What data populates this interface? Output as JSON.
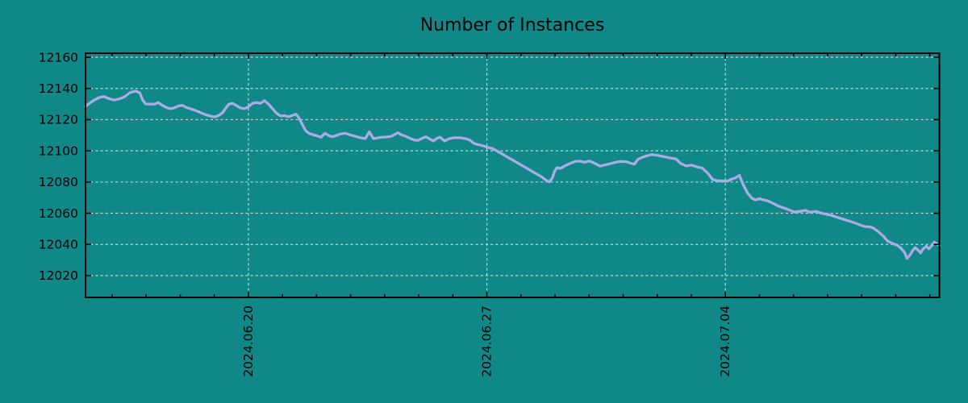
{
  "colors": {
    "background": "#118888",
    "line": "#ababe6",
    "grid": "#c9d3d3",
    "frame": "#000000",
    "text": "#000000"
  },
  "chart_data": {
    "type": "line",
    "title": "Number of Instances",
    "legend": false,
    "grid": true,
    "y_axis": {
      "range": [
        12006,
        12162.6
      ],
      "tick_values": [
        12020,
        12040,
        12060,
        12080,
        12100,
        12120,
        12140,
        12160
      ],
      "tick_labels": [
        "12020",
        "12040",
        "12060",
        "12080",
        "12100",
        "12120",
        "12140",
        "12160"
      ]
    },
    "x_axis": {
      "unit": "days from window start (window begins 2024-06-15 ~05:00)",
      "window_days": [
        0,
        25.06
      ],
      "minor_tick_days": [
        0.78,
        1.78,
        2.78,
        3.78,
        4.78,
        5.78,
        6.78,
        7.78,
        8.78,
        9.78,
        10.78,
        11.78,
        12.78,
        13.78,
        14.78,
        15.78,
        16.78,
        17.78,
        18.78,
        19.78,
        20.78,
        21.78,
        22.78,
        23.78,
        24.78
      ],
      "major_ticks": [
        {
          "d": 4.78,
          "label": "2024.06.20"
        },
        {
          "d": 11.78,
          "label": "2024.06.27"
        },
        {
          "d": 18.78,
          "label": "2024.07.04"
        }
      ]
    },
    "series": [
      {
        "name": "instances",
        "points": [
          [
            0.0,
            12128.5
          ],
          [
            0.12,
            12130.5
          ],
          [
            0.24,
            12132.3
          ],
          [
            0.4,
            12134.2
          ],
          [
            0.54,
            12134.8
          ],
          [
            0.69,
            12133.5
          ],
          [
            0.83,
            12132.5
          ],
          [
            0.99,
            12133.3
          ],
          [
            1.14,
            12134.6
          ],
          [
            1.3,
            12137.3
          ],
          [
            1.47,
            12138.3
          ],
          [
            1.59,
            12137.2
          ],
          [
            1.68,
            12132.5
          ],
          [
            1.77,
            12130.0
          ],
          [
            1.89,
            12130.0
          ],
          [
            2.01,
            12129.9
          ],
          [
            2.13,
            12131.0
          ],
          [
            2.25,
            12129.2
          ],
          [
            2.37,
            12127.8
          ],
          [
            2.48,
            12127.0
          ],
          [
            2.6,
            12127.5
          ],
          [
            2.72,
            12128.7
          ],
          [
            2.84,
            12129.2
          ],
          [
            2.96,
            12127.8
          ],
          [
            3.08,
            12127.0
          ],
          [
            3.19,
            12126.1
          ],
          [
            3.31,
            12125.2
          ],
          [
            3.43,
            12124.0
          ],
          [
            3.55,
            12123.0
          ],
          [
            3.67,
            12122.3
          ],
          [
            3.79,
            12121.7
          ],
          [
            3.9,
            12122.6
          ],
          [
            4.02,
            12124.3
          ],
          [
            4.14,
            12128.2
          ],
          [
            4.21,
            12129.9
          ],
          [
            4.31,
            12130.4
          ],
          [
            4.42,
            12129.2
          ],
          [
            4.54,
            12127.5
          ],
          [
            4.66,
            12127.0
          ],
          [
            4.78,
            12128.2
          ],
          [
            4.9,
            12130.4
          ],
          [
            5.02,
            12131.0
          ],
          [
            5.13,
            12130.4
          ],
          [
            5.25,
            12132.2
          ],
          [
            5.37,
            12130.0
          ],
          [
            5.49,
            12127.0
          ],
          [
            5.61,
            12124.0
          ],
          [
            5.73,
            12122.3
          ],
          [
            5.84,
            12122.6
          ],
          [
            5.96,
            12121.8
          ],
          [
            6.08,
            12122.8
          ],
          [
            6.18,
            12123.5
          ],
          [
            6.27,
            12121.0
          ],
          [
            6.37,
            12116.5
          ],
          [
            6.46,
            12113.0
          ],
          [
            6.55,
            12111.3
          ],
          [
            6.67,
            12110.4
          ],
          [
            6.79,
            12109.6
          ],
          [
            6.91,
            12108.7
          ],
          [
            7.03,
            12111.3
          ],
          [
            7.15,
            12109.6
          ],
          [
            7.26,
            12109.0
          ],
          [
            7.38,
            12110.0
          ],
          [
            7.5,
            12110.9
          ],
          [
            7.62,
            12111.3
          ],
          [
            7.74,
            12110.4
          ],
          [
            7.86,
            12109.6
          ],
          [
            7.97,
            12109.0
          ],
          [
            8.09,
            12108.3
          ],
          [
            8.21,
            12107.8
          ],
          [
            8.33,
            12112.2
          ],
          [
            8.45,
            12107.8
          ],
          [
            8.57,
            12108.3
          ],
          [
            8.68,
            12108.7
          ],
          [
            8.8,
            12108.8
          ],
          [
            8.98,
            12109.3
          ],
          [
            9.17,
            12111.6
          ],
          [
            9.28,
            12110.2
          ],
          [
            9.4,
            12109.3
          ],
          [
            9.52,
            12108.1
          ],
          [
            9.64,
            12107.0
          ],
          [
            9.76,
            12106.7
          ],
          [
            9.88,
            12108.1
          ],
          [
            9.99,
            12109.0
          ],
          [
            10.11,
            12107.5
          ],
          [
            10.21,
            12106.3
          ],
          [
            10.3,
            12107.8
          ],
          [
            10.4,
            12108.8
          ],
          [
            10.54,
            12106.3
          ],
          [
            10.68,
            12107.8
          ],
          [
            10.82,
            12108.4
          ],
          [
            10.99,
            12108.4
          ],
          [
            11.16,
            12107.8
          ],
          [
            11.27,
            12107.0
          ],
          [
            11.39,
            12104.9
          ],
          [
            11.51,
            12104.0
          ],
          [
            11.63,
            12103.5
          ],
          [
            11.77,
            12102.5
          ],
          [
            11.94,
            12101.5
          ],
          [
            12.19,
            12098.5
          ],
          [
            12.42,
            12095.5
          ],
          [
            12.66,
            12092.5
          ],
          [
            12.9,
            12089.5
          ],
          [
            13.13,
            12086.5
          ],
          [
            13.37,
            12083.5
          ],
          [
            13.51,
            12081.3
          ],
          [
            13.61,
            12080.0
          ],
          [
            13.7,
            12082.5
          ],
          [
            13.77,
            12087.0
          ],
          [
            13.84,
            12089.2
          ],
          [
            13.94,
            12088.7
          ],
          [
            14.08,
            12090.5
          ],
          [
            14.25,
            12092.2
          ],
          [
            14.39,
            12093.3
          ],
          [
            14.51,
            12093.4
          ],
          [
            14.65,
            12092.6
          ],
          [
            14.79,
            12093.5
          ],
          [
            14.95,
            12091.9
          ],
          [
            15.1,
            12090.2
          ],
          [
            15.26,
            12091.0
          ],
          [
            15.43,
            12091.9
          ],
          [
            15.59,
            12092.8
          ],
          [
            15.73,
            12093.2
          ],
          [
            15.9,
            12092.9
          ],
          [
            16.0,
            12092.0
          ],
          [
            16.11,
            12091.5
          ],
          [
            16.21,
            12094.5
          ],
          [
            16.33,
            12095.7
          ],
          [
            16.44,
            12096.6
          ],
          [
            16.61,
            12097.6
          ],
          [
            16.78,
            12097.1
          ],
          [
            16.97,
            12096.3
          ],
          [
            17.16,
            12095.4
          ],
          [
            17.32,
            12094.9
          ],
          [
            17.46,
            12092.0
          ],
          [
            17.63,
            12090.3
          ],
          [
            17.79,
            12090.8
          ],
          [
            17.94,
            12089.7
          ],
          [
            18.1,
            12089.0
          ],
          [
            18.27,
            12085.5
          ],
          [
            18.41,
            12081.5
          ],
          [
            18.57,
            12080.8
          ],
          [
            18.72,
            12080.6
          ],
          [
            18.83,
            12080.5
          ],
          [
            18.95,
            12081.7
          ],
          [
            19.07,
            12082.6
          ],
          [
            19.19,
            12084.3
          ],
          [
            19.31,
            12078.0
          ],
          [
            19.43,
            12073.0
          ],
          [
            19.55,
            12069.7
          ],
          [
            19.66,
            12068.5
          ],
          [
            19.78,
            12069.3
          ],
          [
            19.9,
            12068.5
          ],
          [
            20.02,
            12068.0
          ],
          [
            20.18,
            12066.3
          ],
          [
            20.33,
            12064.6
          ],
          [
            20.49,
            12063.4
          ],
          [
            20.66,
            12062.0
          ],
          [
            20.8,
            12060.8
          ],
          [
            20.97,
            12061.2
          ],
          [
            21.13,
            12061.8
          ],
          [
            21.27,
            12060.7
          ],
          [
            21.44,
            12061.2
          ],
          [
            21.6,
            12060.0
          ],
          [
            21.75,
            12059.3
          ],
          [
            21.89,
            12058.6
          ],
          [
            22.05,
            12057.5
          ],
          [
            22.22,
            12056.3
          ],
          [
            22.38,
            12055.2
          ],
          [
            22.55,
            12054.0
          ],
          [
            22.69,
            12052.8
          ],
          [
            22.86,
            12051.5
          ],
          [
            23.02,
            12051.2
          ],
          [
            23.12,
            12050.5
          ],
          [
            23.26,
            12048.3
          ],
          [
            23.4,
            12045.7
          ],
          [
            23.54,
            12042.2
          ],
          [
            23.69,
            12040.5
          ],
          [
            23.8,
            12039.7
          ],
          [
            23.92,
            12037.9
          ],
          [
            24.04,
            12034.8
          ],
          [
            24.11,
            12031.0
          ],
          [
            24.21,
            12033.6
          ],
          [
            24.28,
            12036.2
          ],
          [
            24.35,
            12037.9
          ],
          [
            24.44,
            12036.2
          ],
          [
            24.51,
            12034.5
          ],
          [
            24.58,
            12037.1
          ],
          [
            24.68,
            12038.8
          ],
          [
            24.75,
            12037.1
          ],
          [
            24.82,
            12038.8
          ],
          [
            24.91,
            12041.4
          ],
          [
            24.98,
            12040.5
          ],
          [
            25.06,
            12039.2
          ]
        ]
      }
    ]
  }
}
